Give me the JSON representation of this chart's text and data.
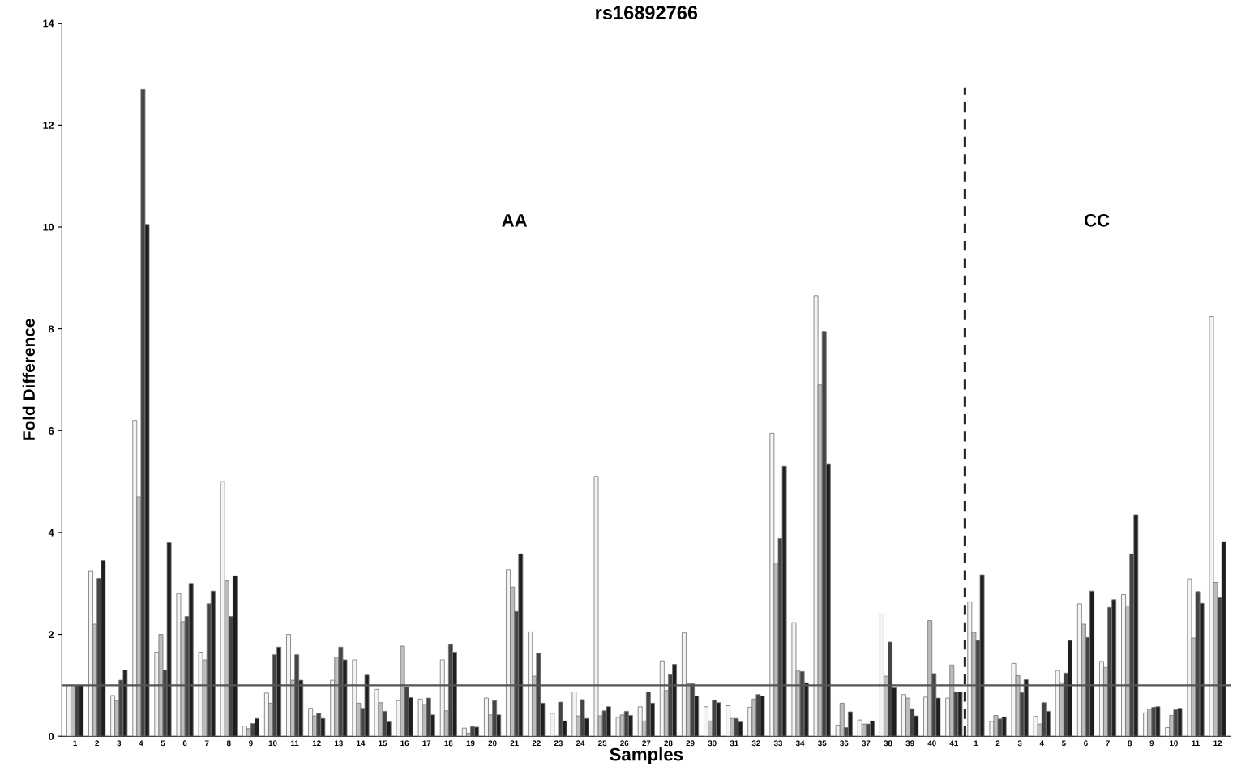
{
  "chart_data": {
    "type": "bar",
    "title": "rs16892766",
    "xlabel": "Samples",
    "ylabel": "Fold Difference",
    "categories": [
      "1",
      "2",
      "3",
      "4",
      "5",
      "6",
      "7",
      "8",
      "9",
      "10",
      "11",
      "12",
      "13",
      "14",
      "15",
      "16",
      "17",
      "18",
      "19",
      "20",
      "21",
      "22",
      "23",
      "24",
      "25",
      "26",
      "27",
      "28",
      "29",
      "30",
      "31",
      "32",
      "33",
      "34",
      "35",
      "36",
      "37",
      "38",
      "39",
      "40",
      "41",
      "1",
      "2",
      "3",
      "4",
      "5",
      "6",
      "7",
      "8",
      "9",
      "10",
      "11",
      "12"
    ],
    "series": [
      {
        "color": "#f4f4f4",
        "values": [
          1,
          3.25,
          0.8,
          6.2,
          1.65,
          2.8,
          1.65,
          5.0,
          0.2,
          0.85,
          2.0,
          0.55,
          1.1,
          1.5,
          0.92,
          0.7,
          0.73,
          1.5,
          0.16,
          0.75,
          3.27,
          2.05,
          0.45,
          0.87,
          5.1,
          0.37,
          0.58,
          1.48,
          2.03,
          0.58,
          0.6,
          0.57,
          5.95,
          2.23,
          8.65,
          0.22,
          0.32,
          2.4,
          0.82,
          0.77,
          0.75,
          2.64,
          0.29,
          1.43,
          0.39,
          1.29,
          2.6,
          1.47,
          2.78,
          0.46,
          0.17,
          3.09,
          8.24
        ]
      },
      {
        "color": "#bdbdbd",
        "values": [
          1,
          2.2,
          0.7,
          4.7,
          2.0,
          2.25,
          1.5,
          3.05,
          0.15,
          0.65,
          1.1,
          0.4,
          1.55,
          0.65,
          0.66,
          1.77,
          0.63,
          0.5,
          0.06,
          0.42,
          2.93,
          1.18,
          null,
          0.4,
          0.4,
          0.42,
          0.3,
          0.9,
          1.03,
          0.3,
          0.35,
          0.73,
          3.4,
          1.28,
          6.9,
          0.65,
          0.24,
          1.18,
          0.75,
          2.27,
          1.4,
          2.04,
          0.41,
          1.19,
          0.24,
          1.05,
          2.2,
          1.35,
          2.56,
          0.53,
          0.41,
          1.93,
          3.02
        ]
      },
      {
        "color": "#444444",
        "values": [
          1,
          3.1,
          1.1,
          12.7,
          1.3,
          2.35,
          2.6,
          2.35,
          0.25,
          1.6,
          1.6,
          0.45,
          1.75,
          0.55,
          0.49,
          0.97,
          0.75,
          1.8,
          0.19,
          0.7,
          2.45,
          1.63,
          0.67,
          0.72,
          0.5,
          0.49,
          0.87,
          1.21,
          1.03,
          0.71,
          0.35,
          0.82,
          3.88,
          1.27,
          7.95,
          0.17,
          0.24,
          1.85,
          0.54,
          1.23,
          0.87,
          1.88,
          0.34,
          0.86,
          0.66,
          1.24,
          1.94,
          2.53,
          3.58,
          0.57,
          0.52,
          2.84,
          2.72
        ]
      },
      {
        "color": "#1e1e1e",
        "values": [
          1,
          3.45,
          1.3,
          10.05,
          3.8,
          3.0,
          2.85,
          3.15,
          0.35,
          1.75,
          1.1,
          0.35,
          1.5,
          1.2,
          0.28,
          0.76,
          0.42,
          1.65,
          0.18,
          0.42,
          3.58,
          0.65,
          0.3,
          0.35,
          0.58,
          0.41,
          0.65,
          1.41,
          0.79,
          0.66,
          0.28,
          0.79,
          5.3,
          1.05,
          5.35,
          0.48,
          0.3,
          0.95,
          0.4,
          0.75,
          0.87,
          3.17,
          0.38,
          1.11,
          0.49,
          1.88,
          2.85,
          2.68,
          4.35,
          0.58,
          0.55,
          2.61,
          3.82
        ]
      }
    ],
    "ylim": [
      0,
      14
    ],
    "yticks": [
      0,
      2,
      4,
      6,
      8,
      10,
      12,
      14
    ],
    "grid": false,
    "legend": false,
    "ref_lines": [
      {
        "axis": "y",
        "value": 1,
        "color": "#555555",
        "line_style": "solid"
      }
    ],
    "annotations": [
      "AA",
      "CC"
    ]
  }
}
